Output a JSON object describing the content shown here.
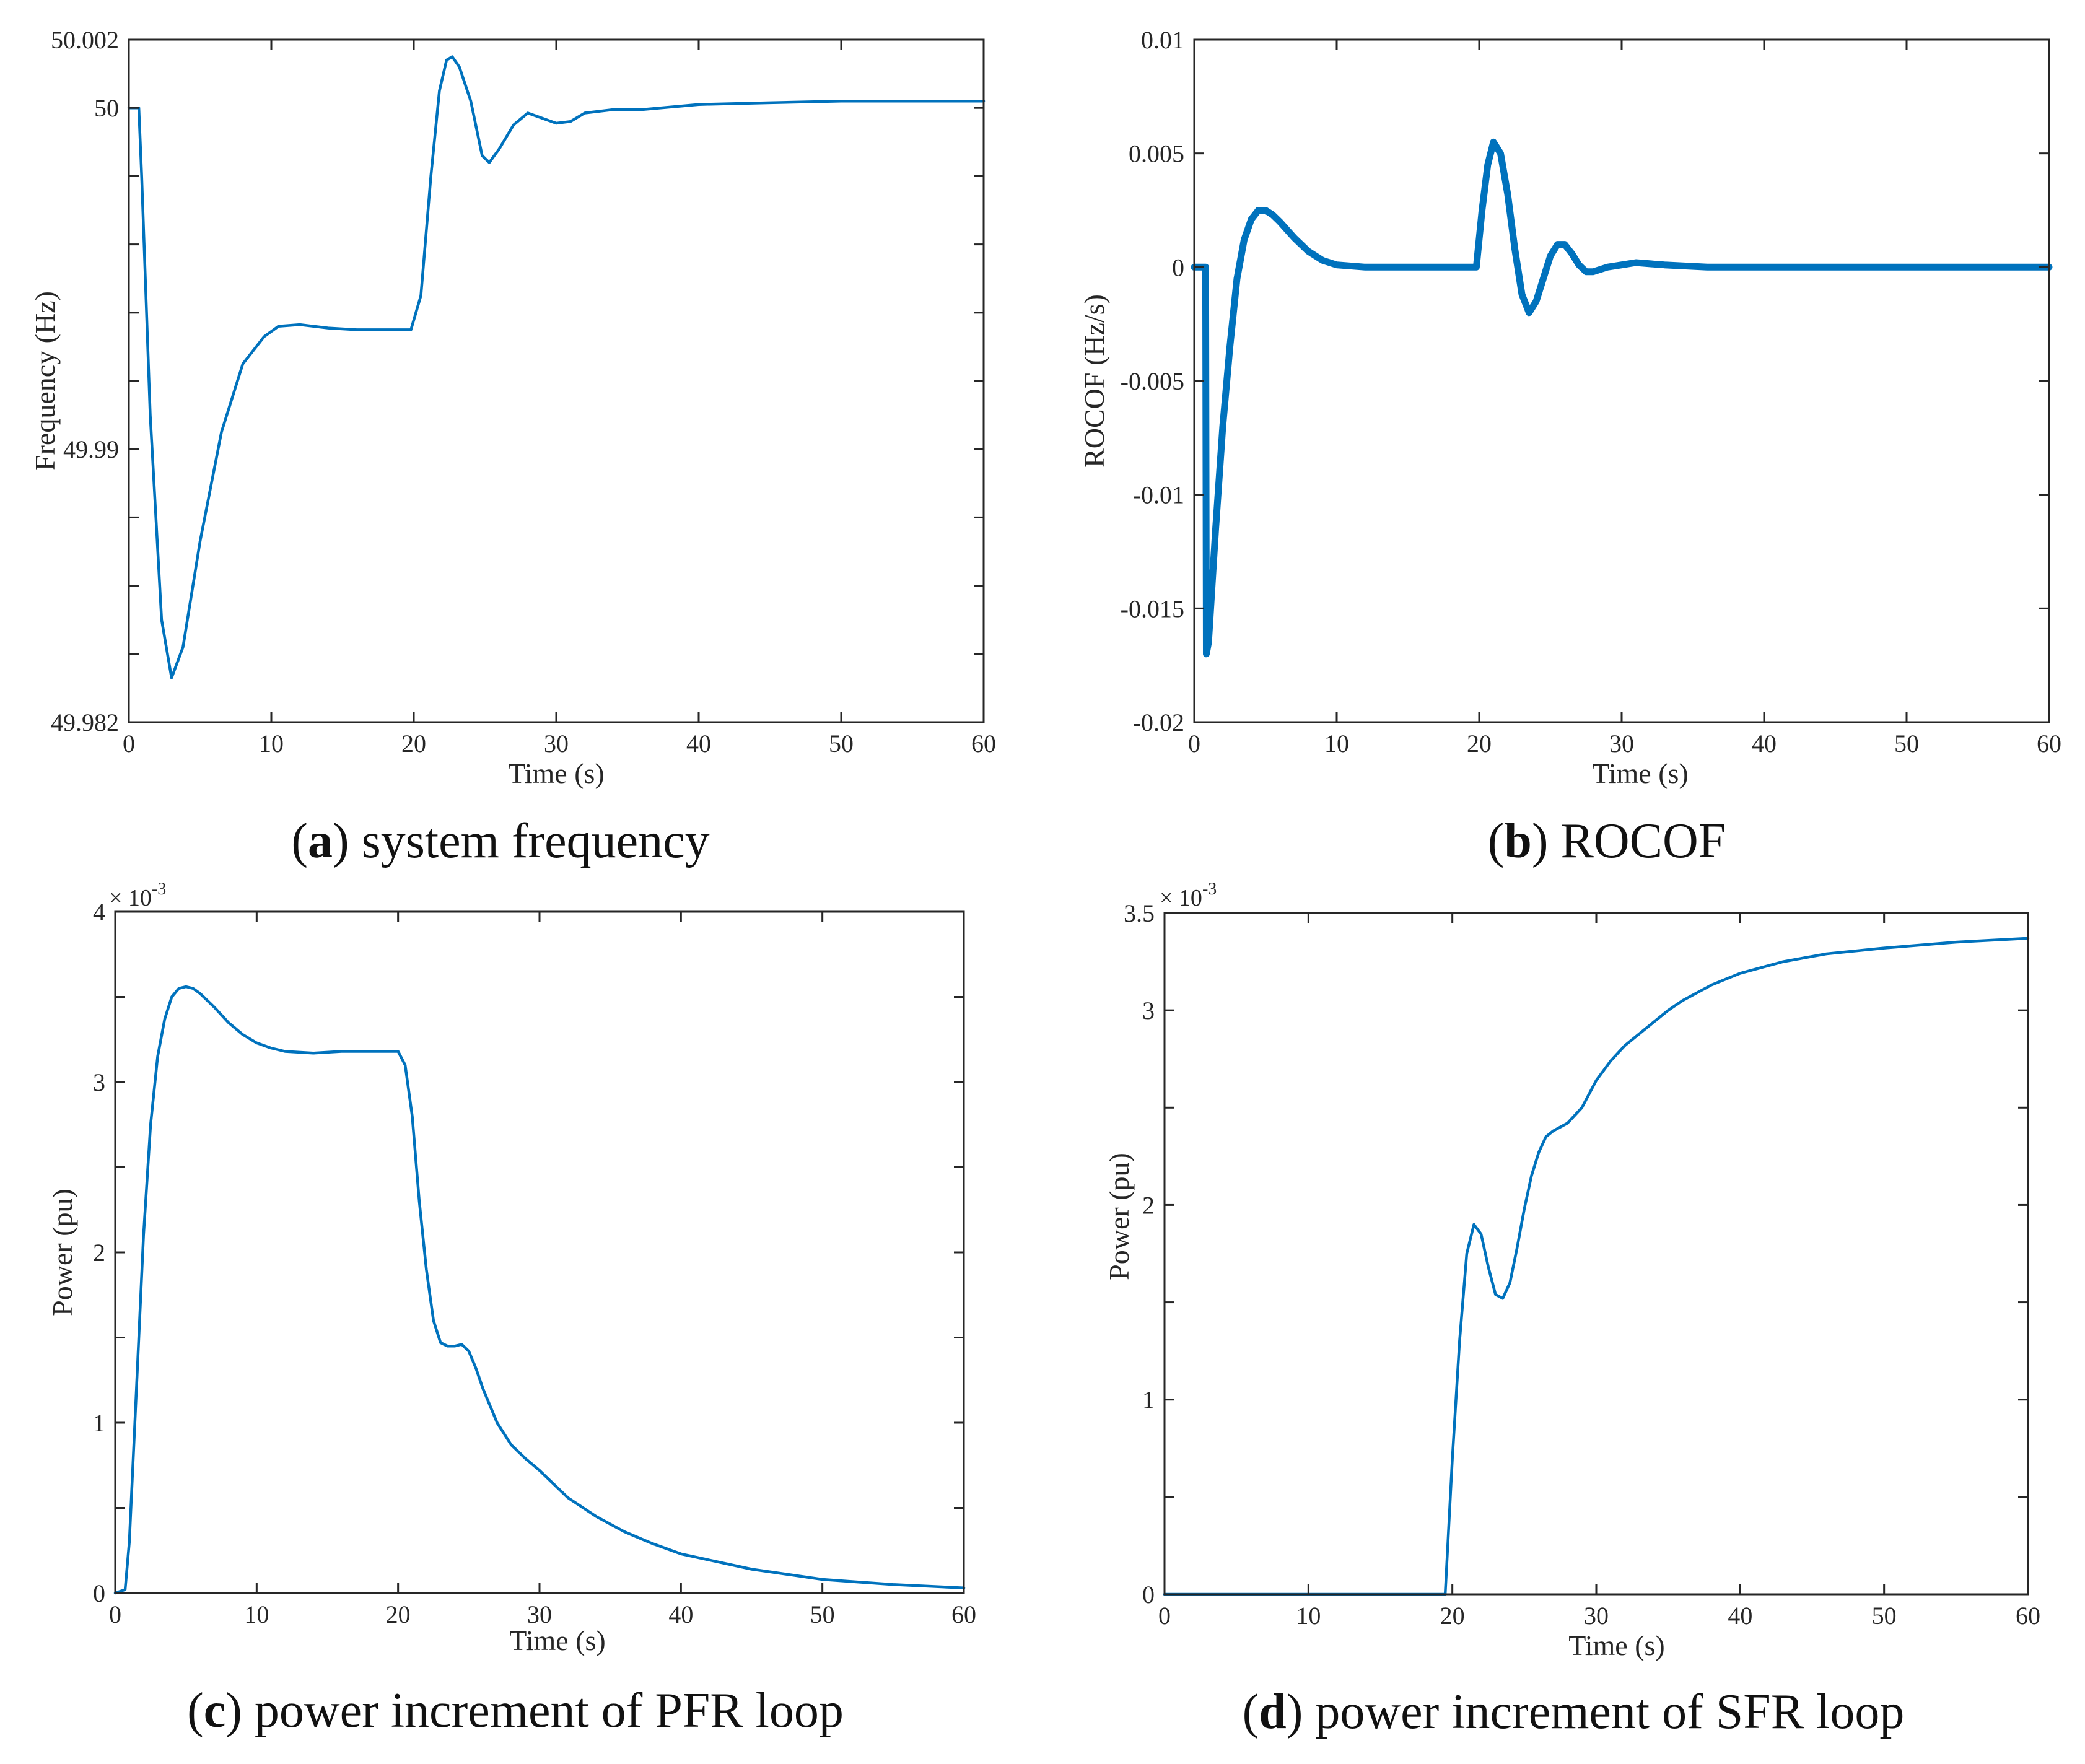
{
  "chart_data": [
    {
      "id": "a",
      "type": "line",
      "caption_letter": "a",
      "caption_text": "system frequency",
      "xlabel": "Time (s)",
      "ylabel": "Frequency (Hz)",
      "xlim": [
        0,
        60
      ],
      "ylim": [
        49.982,
        50.002
      ],
      "xticks": [
        0,
        10,
        20,
        30,
        40,
        50,
        60
      ],
      "xtick_labels": [
        "0",
        "10",
        "20",
        "30",
        "40",
        "50",
        "60"
      ],
      "yticks": [
        49.982,
        49.984,
        49.986,
        49.988,
        49.99,
        49.992,
        49.994,
        49.996,
        49.998,
        50,
        50.002
      ],
      "ytick_labels": [
        {
          "value": 49.982,
          "label": "49.982"
        },
        {
          "value": 49.99,
          "label": "49.99"
        },
        {
          "value": 50,
          "label": "50"
        },
        {
          "value": 50.002,
          "label": "50.002"
        }
      ],
      "series": [
        {
          "name": "frequency",
          "color": "#0072BD",
          "x": [
            0,
            0.7,
            0.9,
            1.5,
            2.3,
            3.0,
            3.8,
            5,
            6.5,
            8,
            9.5,
            10.5,
            12,
            14,
            16,
            18,
            19.8,
            20.5,
            21.2,
            21.8,
            22.3,
            22.7,
            23.2,
            24,
            24.8,
            25.3,
            26,
            27,
            28,
            29,
            30,
            31,
            32,
            34,
            36,
            40,
            45,
            50,
            55,
            60
          ],
          "y": [
            50.0,
            50.0,
            49.998,
            49.991,
            49.985,
            49.9833,
            49.9842,
            49.9873,
            49.9905,
            49.9925,
            49.9933,
            49.9936,
            49.99365,
            49.99355,
            49.9935,
            49.9935,
            49.9935,
            49.9945,
            49.998,
            50.0005,
            50.0014,
            50.0015,
            50.0012,
            50.0002,
            49.9986,
            49.9984,
            49.9988,
            49.9995,
            49.99985,
            49.9997,
            49.99955,
            49.9996,
            49.99985,
            49.99995,
            49.99995,
            50.0001,
            50.00015,
            50.0002,
            50.0002,
            50.0002
          ]
        }
      ]
    },
    {
      "id": "b",
      "type": "line",
      "caption_letter": "b",
      "caption_text": "ROCOF",
      "xlabel": "Time (s)",
      "ylabel": "ROCOF (Hz/s)",
      "xlim": [
        0,
        60
      ],
      "ylim": [
        -0.02,
        0.01
      ],
      "xticks": [
        0,
        10,
        20,
        30,
        40,
        50,
        60
      ],
      "xtick_labels": [
        "0",
        "10",
        "20",
        "30",
        "40",
        "50",
        "60"
      ],
      "yticks": [
        -0.02,
        -0.015,
        -0.01,
        -0.005,
        0,
        0.005,
        0.01
      ],
      "ytick_labels": [
        {
          "value": -0.02,
          "label": "-0.02"
        },
        {
          "value": -0.015,
          "label": "-0.015"
        },
        {
          "value": -0.01,
          "label": "-0.01"
        },
        {
          "value": -0.005,
          "label": "-0.005"
        },
        {
          "value": 0,
          "label": "0"
        },
        {
          "value": 0.005,
          "label": "0.005"
        },
        {
          "value": 0.01,
          "label": "0.01"
        }
      ],
      "series": [
        {
          "name": "rocof",
          "color": "#0072BD",
          "noisy": true,
          "x": [
            0,
            0.8,
            0.85,
            1.0,
            1.5,
            2,
            2.5,
            3,
            3.5,
            4,
            4.5,
            5,
            5.5,
            6,
            7,
            8,
            9,
            10,
            12,
            15,
            19.8,
            20.2,
            20.6,
            21,
            21.5,
            22,
            22.5,
            23,
            23.5,
            24,
            24.5,
            25,
            25.5,
            26,
            26.5,
            27,
            27.5,
            28,
            29,
            30,
            31,
            33,
            36,
            40,
            50,
            60
          ],
          "y": [
            0,
            0,
            -0.017,
            -0.0165,
            -0.0115,
            -0.007,
            -0.0035,
            -0.0005,
            0.0012,
            0.0021,
            0.0025,
            0.0025,
            0.0023,
            0.002,
            0.0013,
            0.0007,
            0.0003,
            0.0001,
            0.0,
            0.0,
            0.0,
            0.0025,
            0.0045,
            0.0055,
            0.005,
            0.0032,
            0.0008,
            -0.0012,
            -0.002,
            -0.0015,
            -0.0005,
            0.0005,
            0.001,
            0.001,
            0.0006,
            0.0001,
            -0.0002,
            -0.0002,
            0.0,
            0.0001,
            0.0002,
            0.0001,
            0.0,
            0.0,
            0.0,
            0.0
          ]
        }
      ]
    },
    {
      "id": "c",
      "type": "line",
      "caption_letter": "c",
      "caption_text": "power increment of PFR loop",
      "xlabel": "Time (s)",
      "ylabel": "Power (pu)",
      "exponent_label": "× 10",
      "exponent_power": "-3",
      "xlim": [
        0,
        60
      ],
      "ylim": [
        0,
        4
      ],
      "xticks": [
        0,
        10,
        20,
        30,
        40,
        50,
        60
      ],
      "xtick_labels": [
        "0",
        "10",
        "20",
        "30",
        "40",
        "50",
        "60"
      ],
      "yticks": [
        0,
        0.5,
        1,
        1.5,
        2,
        2.5,
        3,
        3.5,
        4
      ],
      "ytick_labels": [
        {
          "value": 0,
          "label": "0"
        },
        {
          "value": 1,
          "label": "1"
        },
        {
          "value": 2,
          "label": "2"
        },
        {
          "value": 3,
          "label": "3"
        },
        {
          "value": 4,
          "label": "4"
        }
      ],
      "series": [
        {
          "name": "pfr_power",
          "color": "#0072BD",
          "x": [
            0,
            0.7,
            1.0,
            1.5,
            2,
            2.5,
            3,
            3.5,
            4,
            4.5,
            5,
            5.5,
            6,
            7,
            8,
            9,
            10,
            11,
            12,
            14,
            16,
            18,
            19.5,
            20,
            20.5,
            21,
            21.5,
            22,
            22.5,
            23,
            23.5,
            24,
            24.5,
            25,
            25.5,
            26,
            27,
            28,
            29,
            30,
            31,
            32,
            34,
            36,
            38,
            40,
            45,
            50,
            55,
            60
          ],
          "y": [
            0,
            0.02,
            0.3,
            1.2,
            2.1,
            2.75,
            3.15,
            3.37,
            3.5,
            3.55,
            3.56,
            3.55,
            3.52,
            3.44,
            3.35,
            3.28,
            3.23,
            3.2,
            3.18,
            3.17,
            3.18,
            3.18,
            3.18,
            3.18,
            3.1,
            2.8,
            2.3,
            1.9,
            1.6,
            1.47,
            1.45,
            1.45,
            1.46,
            1.42,
            1.32,
            1.2,
            1.0,
            0.87,
            0.79,
            0.72,
            0.64,
            0.56,
            0.45,
            0.36,
            0.29,
            0.23,
            0.14,
            0.08,
            0.05,
            0.03
          ]
        }
      ]
    },
    {
      "id": "d",
      "type": "line",
      "caption_letter": "d",
      "caption_text": "power increment of SFR loop",
      "xlabel": "Time (s)",
      "ylabel": "Power (pu)",
      "exponent_label": "× 10",
      "exponent_power": "-3",
      "xlim": [
        0,
        60
      ],
      "ylim": [
        0,
        3.5
      ],
      "xticks": [
        0,
        10,
        20,
        30,
        40,
        50,
        60
      ],
      "xtick_labels": [
        "0",
        "10",
        "20",
        "30",
        "40",
        "50",
        "60"
      ],
      "yticks": [
        0,
        0.5,
        1,
        1.5,
        2,
        2.5,
        3,
        3.5
      ],
      "ytick_labels": [
        {
          "value": 0,
          "label": "0"
        },
        {
          "value": 1,
          "label": "1"
        },
        {
          "value": 2,
          "label": "2"
        },
        {
          "value": 3,
          "label": "3"
        },
        {
          "value": 3.5,
          "label": "3.5"
        }
      ],
      "series": [
        {
          "name": "sfr_power",
          "color": "#0072BD",
          "x": [
            0,
            19.5,
            20,
            20.5,
            21,
            21.5,
            22,
            22.5,
            23,
            23.5,
            24,
            24.5,
            25,
            25.5,
            26,
            26.5,
            27,
            28,
            29,
            30,
            31,
            32,
            33,
            34,
            35,
            36,
            38,
            40,
            43,
            46,
            50,
            55,
            60
          ],
          "y": [
            0,
            0,
            0.7,
            1.3,
            1.75,
            1.9,
            1.85,
            1.68,
            1.54,
            1.52,
            1.6,
            1.78,
            1.98,
            2.15,
            2.27,
            2.35,
            2.38,
            2.42,
            2.5,
            2.64,
            2.74,
            2.82,
            2.88,
            2.94,
            3.0,
            3.05,
            3.13,
            3.19,
            3.25,
            3.29,
            3.32,
            3.35,
            3.37
          ]
        }
      ]
    }
  ]
}
